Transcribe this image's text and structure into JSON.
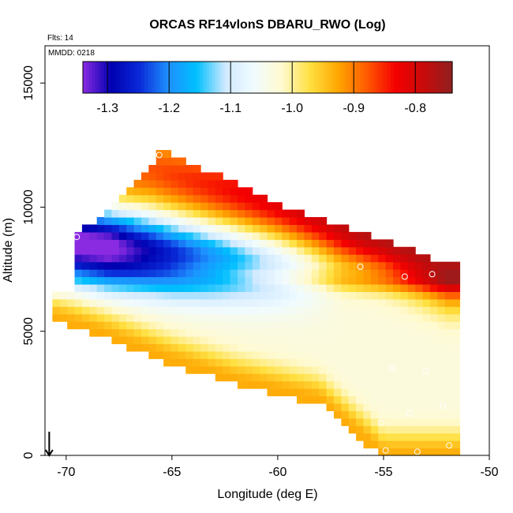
{
  "chart_data": {
    "type": "heatmap",
    "title": "ORCAS RF14vlonS DBARU_RWO (Log)",
    "xlabel": "Longitude (deg E)",
    "ylabel": "Altitude (m)",
    "annotations": {
      "flts": "Flts: 14",
      "mmdd": "MMDD: 0218"
    },
    "xlim": [
      -71,
      -50
    ],
    "ylim": [
      0,
      16500
    ],
    "x_ticks": [
      -70,
      -65,
      -60,
      -55,
      -50
    ],
    "y_ticks": [
      0,
      5000,
      10000,
      15000
    ],
    "colorbar": {
      "range": [
        -1.34,
        -0.74
      ],
      "ticks": [
        -1.3,
        -1.2,
        -1.1,
        -1.0,
        -0.9,
        -0.8
      ],
      "tick_labels": [
        "-1.3",
        "-1.2",
        "-1.1",
        "-1.0",
        "-0.9",
        "-0.8"
      ],
      "colors": [
        "#8a2be2",
        "#0000b0",
        "#0a2ad8",
        "#1e90ff",
        "#00bfff",
        "#cfe9ff",
        "#f0fbff",
        "#fffad0",
        "#ffe040",
        "#ffa500",
        "#ff5a00",
        "#f50000",
        "#c80a0a",
        "#902020"
      ]
    },
    "region": {
      "upper_outline": [
        [
          -69.5,
          8800
        ],
        [
          -68,
          9700
        ],
        [
          -66,
          11500
        ],
        [
          -65.6,
          12200
        ],
        [
          -64.5,
          11800
        ],
        [
          -60,
          10000
        ],
        [
          -55,
          8500
        ],
        [
          -52,
          7600
        ],
        [
          -51.5,
          7500
        ]
      ],
      "lower_outline": [
        [
          -71,
          5700
        ],
        [
          -68,
          4800
        ],
        [
          -65,
          3800
        ],
        [
          -62,
          3000
        ],
        [
          -58,
          2200
        ],
        [
          -55,
          0
        ],
        [
          -52,
          0
        ]
      ],
      "low_value_core": [
        [
          -69.5,
          8800
        ],
        [
          -65,
          8200
        ],
        [
          -60,
          7700
        ],
        [
          -56,
          7500
        ]
      ],
      "high_value_band": [
        [
          -66,
          11500
        ],
        [
          -60,
          10200
        ],
        [
          -55,
          8800
        ],
        [
          -52,
          7700
        ]
      ]
    },
    "flight_points": [
      {
        "lon": -65.6,
        "alt": 12100
      },
      {
        "lon": -69.5,
        "alt": 8800
      },
      {
        "lon": -56.1,
        "alt": 7600
      },
      {
        "lon": -54.0,
        "alt": 7200
      },
      {
        "lon": -52.7,
        "alt": 7300
      },
      {
        "lon": -54.6,
        "alt": 3500
      },
      {
        "lon": -53.0,
        "alt": 3400
      },
      {
        "lon": -55.1,
        "alt": 1300
      },
      {
        "lon": -53.8,
        "alt": 1700
      },
      {
        "lon": -52.2,
        "alt": 2000
      },
      {
        "lon": -54.9,
        "alt": 200
      },
      {
        "lon": -53.4,
        "alt": 150
      },
      {
        "lon": -51.9,
        "alt": 400
      }
    ],
    "arrow": {
      "lon": -70.8,
      "alt_from": 700,
      "alt_to": 0
    }
  }
}
